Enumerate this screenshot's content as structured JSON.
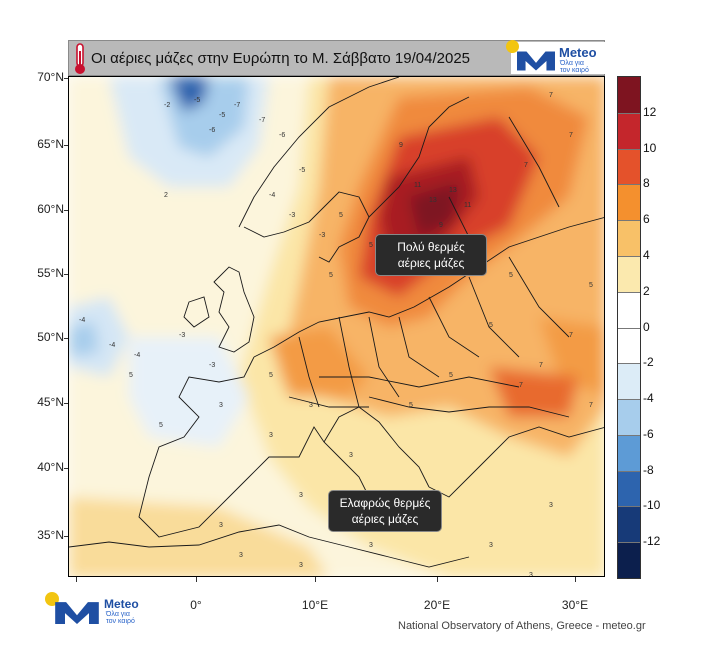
{
  "title": "Οι αέριες μάζες στην Ευρώπη το Μ. Σάββατο 19/04/2025",
  "icons": {
    "thermometer": "thermometer-icon",
    "logo_mark": "meteo-logo-mark"
  },
  "brand": {
    "name": "Meteo",
    "tagline_line1": "Όλα για",
    "tagline_line2": "τον καιρό"
  },
  "lat_labels": [
    "70°N",
    "65°N",
    "60°N",
    "55°N",
    "50°N",
    "45°N",
    "40°N",
    "35°N"
  ],
  "lon_labels": [
    "0°",
    "10°E",
    "20°E",
    "30°E"
  ],
  "colorbar": {
    "labels": [
      "12",
      "10",
      "8",
      "6",
      "4",
      "2",
      "0",
      "-2",
      "-4",
      "-6",
      "-8",
      "-10",
      "-12"
    ],
    "colors": [
      "#7e1420",
      "#c4262c",
      "#e4522b",
      "#f4902e",
      "#f8c168",
      "#fbe9ae",
      "#ffffff",
      "#ffffff",
      "#dcecf7",
      "#a7cdec",
      "#5d9bd6",
      "#2d64ae",
      "#173a78",
      "#0c1f4d"
    ]
  },
  "callouts": {
    "hot_line1": "Πολύ θερμές",
    "hot_line2": "αέριες μάζες",
    "warm_line1": "Ελαφρώς θερμές",
    "warm_line2": "αέριες μάζες"
  },
  "footer_credit": "National Observatory of Athens, Greece - meteo.gr",
  "map_number_labels": [
    "7",
    "7",
    "7",
    "9",
    "9",
    "11",
    "11",
    "13",
    "13",
    "5",
    "5",
    "5",
    "5",
    "3",
    "3",
    "3",
    "3",
    "3",
    "3",
    "-4",
    "-4",
    "-4",
    "-3",
    "-3",
    "-5",
    "-5",
    "-6",
    "-7",
    "-7",
    "-6",
    "-5",
    "-4",
    "-3",
    "-3",
    "-2",
    "2",
    "5",
    "5",
    "7",
    "7",
    "7",
    "7",
    "5",
    "5",
    "3",
    "3",
    "3",
    "3",
    "3",
    "5",
    "3",
    "3",
    "3",
    "5",
    "5"
  ]
}
